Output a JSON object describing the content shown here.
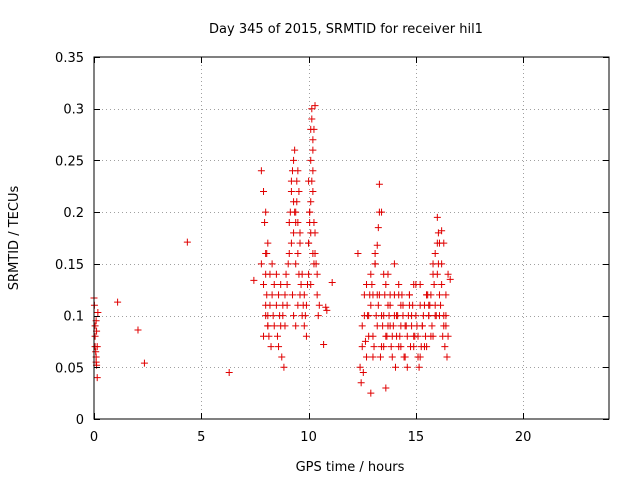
{
  "chart_data": {
    "type": "scatter",
    "title": "Day 345 of 2015, SRMTID for receiver hil1",
    "xlabel": "GPS time / hours",
    "ylabel": "SRMTID / TECUs",
    "xlim": [
      0,
      24
    ],
    "ylim": [
      0,
      0.35
    ],
    "xticks": [
      0,
      5,
      10,
      15,
      20
    ],
    "xtick_labels": [
      "0",
      "5",
      "10",
      "15",
      "20"
    ],
    "yticks": [
      0,
      0.05,
      0.1,
      0.15,
      0.2,
      0.25,
      0.3,
      0.35
    ],
    "ytick_labels": [
      "0",
      "0.05",
      "0.1",
      "0.15",
      "0.2",
      "0.25",
      "0.3",
      "0.35"
    ],
    "grid": true,
    "marker": "+",
    "color": "#e00000",
    "series": [
      {
        "x": [
          0.0,
          0.02,
          0.05,
          0.05,
          0.08,
          0.1,
          0.1,
          0.12,
          0.12,
          0.15,
          0.15,
          0.18,
          0.05,
          0.1,
          1.1,
          2.05,
          2.35,
          4.35,
          6.3,
          7.45,
          7.8,
          7.8,
          7.9,
          7.9,
          7.95,
          8.0,
          8.0,
          8.05,
          8.1,
          8.1,
          8.15,
          8.2,
          8.2,
          8.25,
          8.3,
          8.3,
          8.35,
          8.4,
          8.4,
          8.5,
          8.5,
          8.55,
          8.6,
          8.6,
          8.65,
          8.7,
          8.7,
          8.75,
          8.8,
          8.8,
          8.85,
          8.9,
          8.9,
          8.95,
          9.0,
          9.0,
          9.05,
          9.1,
          9.1,
          9.15,
          9.2,
          9.2,
          9.25,
          9.3,
          9.3,
          9.35,
          9.4,
          9.4,
          9.45,
          9.5,
          9.5,
          9.55,
          9.6,
          9.6,
          9.65,
          9.7,
          9.7,
          9.75,
          9.8,
          9.8,
          9.85,
          9.9,
          9.9,
          9.95,
          10.0,
          10.0,
          10.05,
          10.1,
          10.1,
          10.15,
          10.2,
          10.2,
          10.25,
          10.3,
          10.3,
          10.35,
          10.4,
          10.4,
          10.45,
          10.5,
          10.0,
          10.05,
          10.1,
          10.15,
          10.2,
          10.25,
          10.3,
          10.15,
          10.2,
          10.05,
          10.1,
          10.2,
          10.25,
          10.0,
          10.1,
          9.2,
          9.3,
          9.35,
          9.4,
          9.45,
          9.5,
          9.55,
          9.6,
          9.25,
          9.3,
          9.4,
          9.5,
          8.0,
          8.05,
          8.1,
          8.0,
          8.1,
          7.9,
          8.0,
          10.7,
          10.8,
          11.1,
          10.85,
          12.4,
          12.5,
          12.6,
          12.7,
          12.8,
          12.9,
          13.0,
          13.1,
          13.2,
          13.3,
          13.4,
          13.5,
          13.6,
          13.7,
          13.8,
          13.9,
          14.0,
          14.1,
          14.2,
          14.3,
          14.4,
          14.5,
          14.6,
          14.7,
          14.8,
          14.9,
          15.0,
          15.1,
          15.2,
          15.3,
          15.4,
          15.5,
          15.6,
          15.7,
          15.8,
          15.9,
          16.0,
          16.1,
          16.2,
          16.3,
          16.4,
          16.5,
          12.5,
          12.6,
          12.7,
          12.8,
          12.9,
          13.0,
          13.1,
          13.2,
          13.3,
          13.4,
          13.5,
          13.6,
          13.7,
          13.8,
          13.9,
          14.0,
          14.1,
          14.2,
          14.3,
          14.4,
          14.5,
          14.6,
          14.7,
          14.8,
          14.9,
          15.0,
          15.1,
          15.2,
          15.3,
          15.4,
          15.5,
          15.6,
          15.7,
          15.8,
          15.9,
          16.0,
          16.1,
          16.2,
          16.3,
          16.4,
          12.45,
          12.55,
          12.65,
          12.75,
          12.85,
          12.95,
          13.05,
          13.15,
          13.25,
          13.35,
          13.45,
          13.55,
          13.65,
          13.75,
          13.85,
          13.95,
          14.05,
          14.15,
          14.25,
          14.35,
          14.45,
          14.55,
          14.65,
          14.75,
          14.85,
          14.95,
          15.05,
          15.15,
          15.25,
          15.35,
          15.45,
          15.55,
          15.65,
          15.75,
          15.85,
          15.95,
          16.05,
          16.15,
          16.25,
          16.35,
          16.45,
          13.3,
          13.25,
          13.4,
          13.2,
          12.3,
          13.1,
          13.0,
          13.5,
          14.2,
          14.3,
          16.0,
          16.05,
          16.1,
          15.9,
          16.2,
          16.3,
          16.5,
          15.2,
          15.5,
          15.6,
          15.8,
          16.4,
          16.6,
          14.7,
          14.9,
          12.9,
          13.6,
          13.7,
          14.0,
          13.8
        ],
        "y": [
          0.117,
          0.11,
          0.09,
          0.07,
          0.065,
          0.06,
          0.055,
          0.052,
          0.085,
          0.07,
          0.04,
          0.103,
          0.08,
          0.095,
          0.113,
          0.086,
          0.054,
          0.171,
          0.045,
          0.134,
          0.24,
          0.15,
          0.22,
          0.13,
          0.19,
          0.2,
          0.16,
          0.12,
          0.1,
          0.09,
          0.08,
          0.14,
          0.11,
          0.07,
          0.15,
          0.12,
          0.1,
          0.13,
          0.09,
          0.11,
          0.14,
          0.08,
          0.12,
          0.07,
          0.1,
          0.09,
          0.13,
          0.06,
          0.11,
          0.1,
          0.05,
          0.12,
          0.09,
          0.14,
          0.13,
          0.11,
          0.15,
          0.19,
          0.16,
          0.2,
          0.22,
          0.17,
          0.24,
          0.21,
          0.18,
          0.26,
          0.2,
          0.15,
          0.23,
          0.16,
          0.19,
          0.14,
          0.17,
          0.12,
          0.13,
          0.1,
          0.14,
          0.11,
          0.09,
          0.12,
          0.1,
          0.08,
          0.11,
          0.13,
          0.17,
          0.23,
          0.2,
          0.25,
          0.28,
          0.3,
          0.24,
          0.22,
          0.19,
          0.18,
          0.16,
          0.15,
          0.14,
          0.12,
          0.1,
          0.11,
          0.17,
          0.19,
          0.21,
          0.23,
          0.26,
          0.28,
          0.303,
          0.29,
          0.27,
          0.2,
          0.18,
          0.16,
          0.15,
          0.14,
          0.13,
          0.23,
          0.25,
          0.2,
          0.19,
          0.21,
          0.24,
          0.22,
          0.18,
          0.12,
          0.1,
          0.09,
          0.11,
          0.14,
          0.16,
          0.17,
          0.11,
          0.09,
          0.08,
          0.1,
          0.072,
          0.108,
          0.132,
          0.105,
          0.05,
          0.07,
          0.1,
          0.13,
          0.08,
          0.11,
          0.06,
          0.15,
          0.09,
          0.12,
          0.07,
          0.1,
          0.08,
          0.11,
          0.09,
          0.06,
          0.1,
          0.08,
          0.07,
          0.09,
          0.1,
          0.06,
          0.08,
          0.11,
          0.09,
          0.07,
          0.1,
          0.08,
          0.06,
          0.09,
          0.11,
          0.07,
          0.1,
          0.12,
          0.08,
          0.11,
          0.14,
          0.1,
          0.13,
          0.09,
          0.12,
          0.08,
          0.09,
          0.12,
          0.06,
          0.1,
          0.14,
          0.08,
          0.16,
          0.12,
          0.2,
          0.1,
          0.07,
          0.13,
          0.09,
          0.11,
          0.08,
          0.12,
          0.1,
          0.13,
          0.07,
          0.11,
          0.09,
          0.05,
          0.12,
          0.1,
          0.08,
          0.13,
          0.06,
          0.11,
          0.09,
          0.07,
          0.12,
          0.1,
          0.08,
          0.14,
          0.1,
          0.17,
          0.12,
          0.15,
          0.1,
          0.09,
          0.035,
          0.045,
          0.075,
          0.1,
          0.12,
          0.13,
          0.07,
          0.1,
          0.11,
          0.06,
          0.09,
          0.12,
          0.08,
          0.1,
          0.07,
          0.09,
          0.05,
          0.1,
          0.08,
          0.12,
          0.06,
          0.09,
          0.1,
          0.07,
          0.11,
          0.08,
          0.09,
          0.05,
          0.07,
          0.1,
          0.08,
          0.12,
          0.11,
          0.09,
          0.13,
          0.1,
          0.15,
          0.11,
          0.08,
          0.07,
          0.06,
          0.227,
          0.185,
          0.2,
          0.168,
          0.16,
          0.15,
          0.12,
          0.14,
          0.12,
          0.11,
          0.195,
          0.18,
          0.17,
          0.16,
          0.182,
          0.17,
          0.14,
          0.13,
          0.12,
          0.11,
          0.15,
          0.1,
          0.135,
          0.12,
          0.13,
          0.025,
          0.03,
          0.14,
          0.15,
          0.12
        ]
      }
    ]
  }
}
